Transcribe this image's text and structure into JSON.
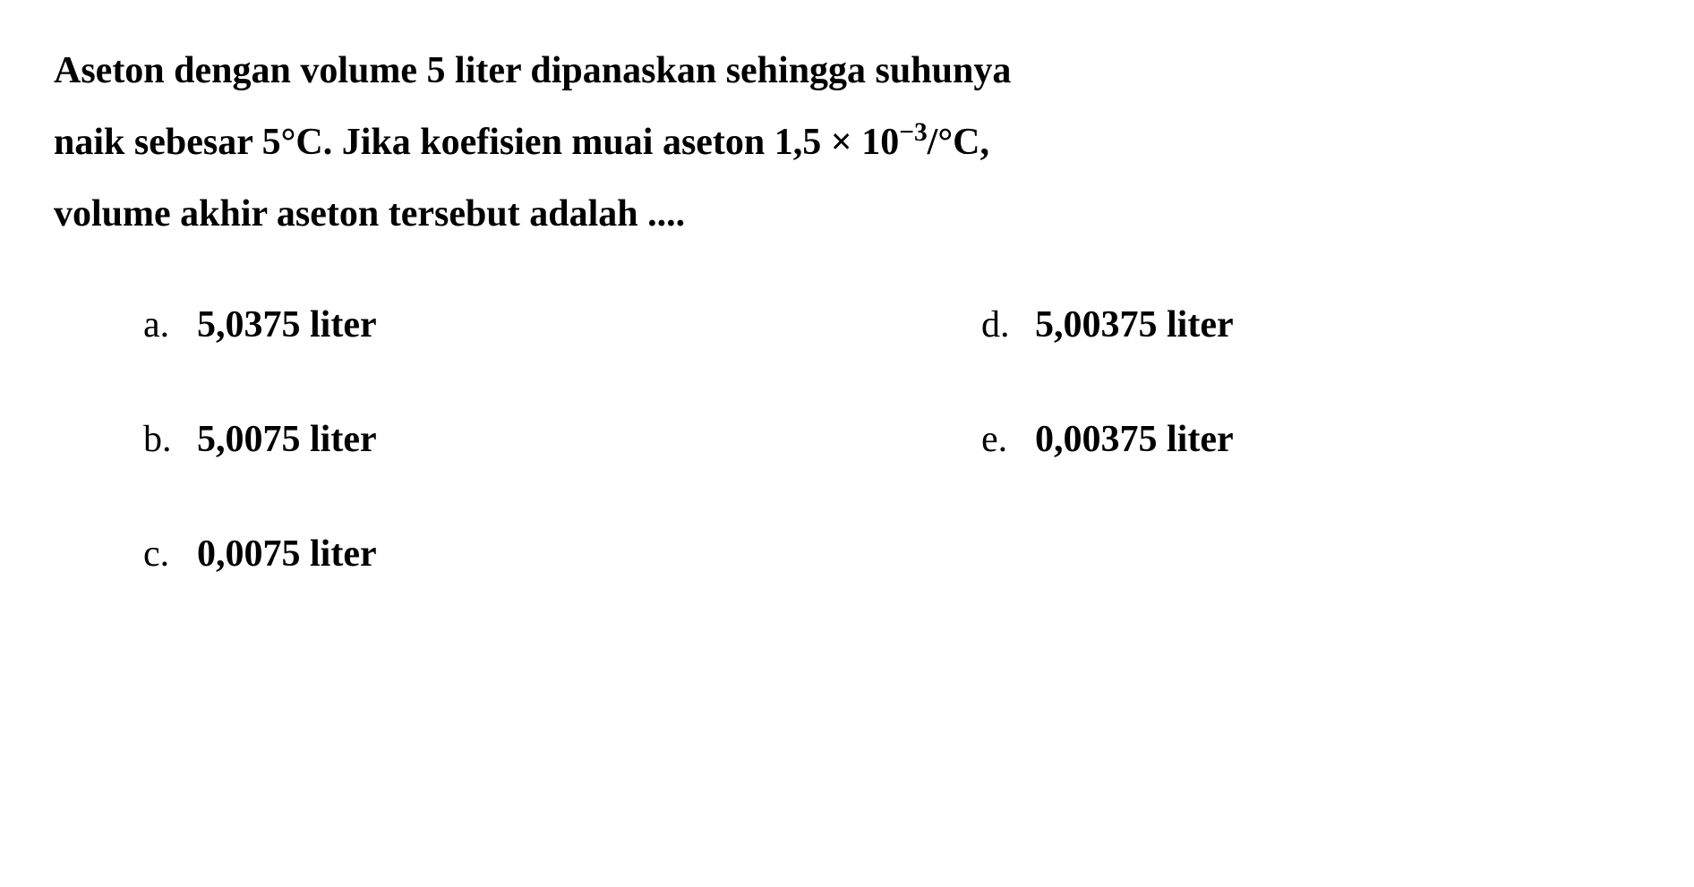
{
  "question": {
    "line1": "Aseton dengan volume 5 liter dipanaskan sehingga suhunya",
    "line2_prefix": "naik sebesar 5",
    "line2_degree": "°C. Jika koefisien muai aseton 1,5 × 10",
    "line2_exp": "−3",
    "line2_suffix": "/°C,",
    "line3": "volume akhir aseton tersebut adalah ...."
  },
  "options": {
    "a": {
      "letter": "a.",
      "text": "5,0375 liter"
    },
    "b": {
      "letter": "b.",
      "text": "5,0075 liter"
    },
    "c": {
      "letter": "c.",
      "text": "0,0075 liter"
    },
    "d": {
      "letter": "d.",
      "text": "5,00375 liter"
    },
    "e": {
      "letter": "e.",
      "text": "0,00375 liter"
    }
  },
  "styling": {
    "font_size_pt": 42,
    "font_weight": "bold",
    "text_color": "#000000",
    "background_color": "#ffffff",
    "line_height": 1.9
  }
}
